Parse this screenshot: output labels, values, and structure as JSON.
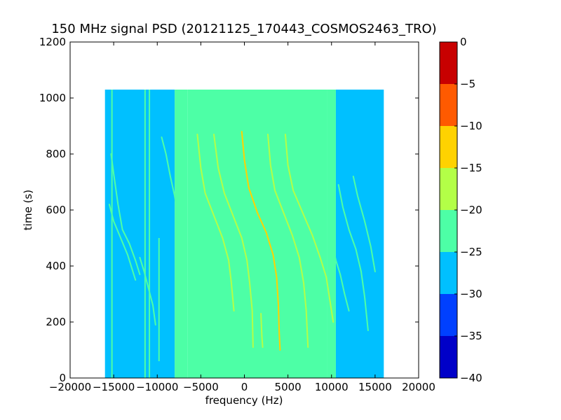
{
  "chart_data": {
    "type": "heatmap",
    "title": "150 MHz signal PSD (20121125_170443_COSMOS2463_TRO)",
    "xlabel": "frequency (Hz)",
    "ylabel": "time (s)",
    "xlim": [
      -20000,
      20000
    ],
    "ylim": [
      0,
      1200
    ],
    "xticks": [
      -20000,
      -15000,
      -10000,
      -5000,
      0,
      5000,
      10000,
      15000,
      20000
    ],
    "xtick_labels": [
      "−20000",
      "−15000",
      "−10000",
      "−5000",
      "0",
      "5000",
      "10000",
      "15000",
      "20000"
    ],
    "yticks": [
      0,
      200,
      400,
      600,
      800,
      1000,
      1200
    ],
    "ytick_labels": [
      "0",
      "200",
      "400",
      "600",
      "800",
      "1000",
      "1200"
    ],
    "data_extent": {
      "freq_range": [
        -16000,
        16000
      ],
      "time_range": [
        0,
        1030
      ]
    },
    "regions": [
      {
        "freq_range": [
          -16000,
          -8000
        ],
        "level": -27.5
      },
      {
        "freq_range": [
          -8000,
          -6500
        ],
        "level": -25
      },
      {
        "freq_range": [
          -6500,
          9500
        ],
        "level": -22.5
      },
      {
        "freq_range": [
          9500,
          10500
        ],
        "level": -25
      },
      {
        "freq_range": [
          10500,
          16000
        ],
        "level": -27.5
      }
    ],
    "signal_traces": [
      {
        "points": [
          [
            -15300,
            800
          ],
          [
            -15000,
            730
          ],
          [
            -14500,
            620
          ],
          [
            -14000,
            530
          ],
          [
            -13200,
            480
          ],
          [
            -12500,
            420
          ],
          [
            -12000,
            370
          ]
        ],
        "level": -22.5
      },
      {
        "points": [
          [
            -15500,
            620
          ],
          [
            -15000,
            560
          ],
          [
            -14200,
            500
          ],
          [
            -13400,
            440
          ],
          [
            -12800,
            380
          ],
          [
            -12500,
            350
          ]
        ],
        "level": -22.5
      },
      {
        "points": [
          [
            -12000,
            430
          ],
          [
            -11500,
            380
          ],
          [
            -11000,
            320
          ],
          [
            -10500,
            260
          ],
          [
            -10200,
            190
          ]
        ],
        "level": -22.5
      },
      {
        "points": [
          [
            -9500,
            860
          ],
          [
            -9000,
            800
          ],
          [
            -8500,
            720
          ],
          [
            -8000,
            650
          ],
          [
            -7500,
            550
          ]
        ],
        "level": -22.5
      },
      {
        "points": [
          [
            -5400,
            870
          ],
          [
            -5000,
            750
          ],
          [
            -4500,
            660
          ],
          [
            -3500,
            580
          ],
          [
            -2500,
            500
          ],
          [
            -1800,
            420
          ],
          [
            -1500,
            340
          ],
          [
            -1200,
            240
          ]
        ],
        "level": -17.5
      },
      {
        "points": [
          [
            -3500,
            870
          ],
          [
            -3000,
            750
          ],
          [
            -2300,
            660
          ],
          [
            -1300,
            580
          ],
          [
            -300,
            500
          ],
          [
            300,
            420
          ],
          [
            600,
            340
          ],
          [
            900,
            240
          ],
          [
            1000,
            110
          ]
        ],
        "level": -17.5
      },
      {
        "points": [
          [
            -300,
            880
          ],
          [
            0,
            780
          ],
          [
            500,
            680
          ],
          [
            1500,
            590
          ],
          [
            2500,
            520
          ],
          [
            3300,
            440
          ],
          [
            3700,
            360
          ],
          [
            3900,
            260
          ],
          [
            4000,
            160
          ],
          [
            4100,
            100
          ]
        ],
        "level": -12.5
      },
      {
        "points": [
          [
            2700,
            870
          ],
          [
            3000,
            760
          ],
          [
            3500,
            670
          ],
          [
            4500,
            590
          ],
          [
            5500,
            510
          ],
          [
            6300,
            430
          ],
          [
            6800,
            340
          ],
          [
            7100,
            240
          ],
          [
            7300,
            110
          ]
        ],
        "level": -17.5
      },
      {
        "points": [
          [
            1900,
            230
          ],
          [
            2000,
            150
          ],
          [
            2100,
            110
          ]
        ],
        "level": -17.5
      },
      {
        "points": [
          [
            4700,
            870
          ],
          [
            5000,
            760
          ],
          [
            5600,
            670
          ],
          [
            6700,
            590
          ],
          [
            7800,
            510
          ],
          [
            8700,
            430
          ],
          [
            9400,
            360
          ],
          [
            9900,
            260
          ],
          [
            10200,
            200
          ]
        ],
        "level": -17.5
      },
      {
        "points": [
          [
            10000,
            490
          ],
          [
            10500,
            420
          ],
          [
            11000,
            370
          ],
          [
            11500,
            300
          ],
          [
            12000,
            240
          ]
        ],
        "level": -22.5
      },
      {
        "points": [
          [
            10800,
            690
          ],
          [
            11300,
            610
          ],
          [
            12000,
            530
          ],
          [
            12800,
            460
          ],
          [
            13400,
            380
          ],
          [
            13800,
            290
          ],
          [
            14200,
            170
          ]
        ],
        "level": -22.5
      },
      {
        "points": [
          [
            12500,
            720
          ],
          [
            13000,
            650
          ],
          [
            13800,
            560
          ],
          [
            14500,
            470
          ],
          [
            15000,
            380
          ]
        ],
        "level": -22.5
      }
    ],
    "vertical_lines": [
      {
        "freq": -11400,
        "time_range": [
          0,
          1030
        ],
        "level": -22.5
      },
      {
        "freq": -10900,
        "time_range": [
          0,
          1030
        ],
        "level": -22.5
      },
      {
        "freq": -15200,
        "time_range": [
          0,
          1030
        ],
        "level": -22.5
      },
      {
        "freq": -9800,
        "time_range": [
          60,
          500
        ],
        "level": -22.5
      }
    ],
    "colorbar": {
      "range": [
        -40,
        0
      ],
      "ticks": [
        0,
        -5,
        -10,
        -15,
        -20,
        -25,
        -30,
        -35,
        -40
      ],
      "tick_labels": [
        "0",
        "−5",
        "−10",
        "−15",
        "−20",
        "−25",
        "−30",
        "−35",
        "−40"
      ],
      "levels": [
        {
          "from": -40,
          "to": -35,
          "color": "#0000c8"
        },
        {
          "from": -35,
          "to": -30,
          "color": "#0040ff"
        },
        {
          "from": -30,
          "to": -25,
          "color": "#00c0ff"
        },
        {
          "from": -25,
          "to": -20,
          "color": "#4dffa6"
        },
        {
          "from": -20,
          "to": -15,
          "color": "#b3ff47"
        },
        {
          "from": -15,
          "to": -10,
          "color": "#ffd200"
        },
        {
          "from": -10,
          "to": -5,
          "color": "#ff5a00"
        },
        {
          "from": -5,
          "to": 0,
          "color": "#c80000"
        }
      ]
    }
  }
}
